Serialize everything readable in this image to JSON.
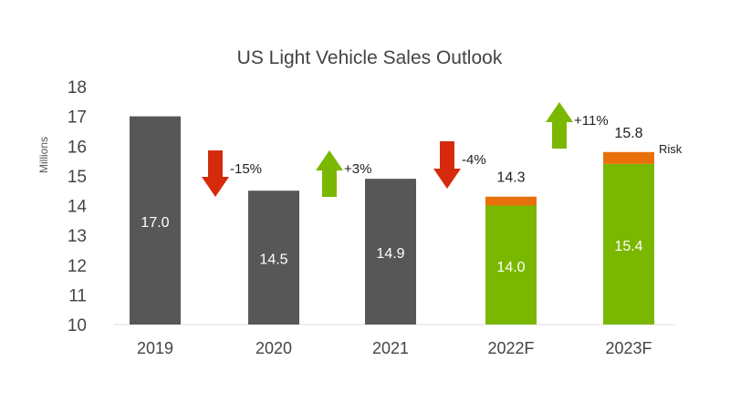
{
  "chart_data": {
    "type": "bar",
    "title": "US Light Vehicle Sales Outlook",
    "ylabel": "Millions",
    "xlabel": "",
    "ylim": [
      10,
      18
    ],
    "yticks": [
      "10",
      "11",
      "12",
      "13",
      "14",
      "15",
      "16",
      "17",
      "18"
    ],
    "grid": false,
    "categories": [
      "2019",
      "2020",
      "2021",
      "2022F",
      "2023F"
    ],
    "series": [
      {
        "values": [
          17.0,
          14.5,
          14.9,
          14.0,
          15.4
        ],
        "labels": [
          "17.0",
          "14.5",
          "14.9",
          "14.0",
          "15.4"
        ]
      },
      {
        "name": "Risk",
        "values": [
          null,
          null,
          null,
          14.3,
          15.8
        ],
        "labels": [
          "",
          "",
          "",
          "14.3",
          "15.8"
        ]
      }
    ],
    "changes": [
      {
        "label": "-15%",
        "direction": "down"
      },
      {
        "label": "+3%",
        "direction": "up"
      },
      {
        "label": "-4%",
        "direction": "down"
      },
      {
        "label": "+11%",
        "direction": "up"
      }
    ],
    "colors": {
      "actual": "#575757",
      "forecast": "#7ab800",
      "risk": "#e8700a",
      "down": "#d52b0c",
      "up": "#7ab800"
    }
  }
}
